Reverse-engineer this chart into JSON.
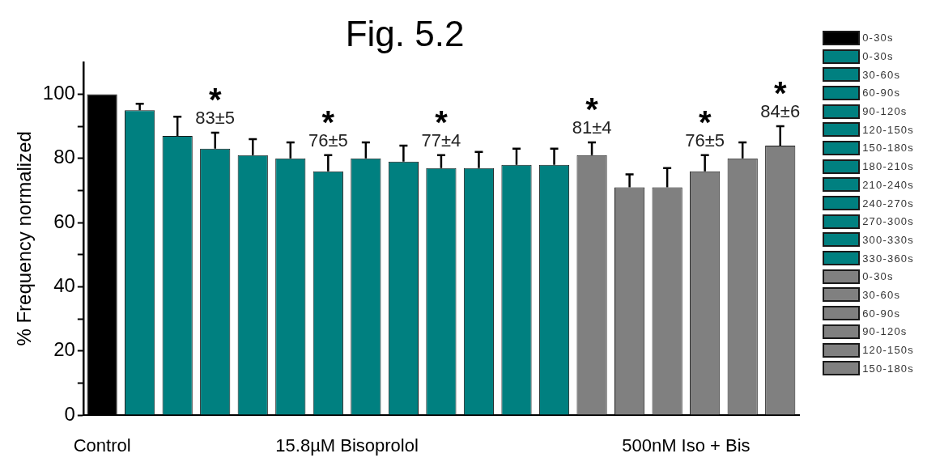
{
  "chart_data": {
    "type": "bar",
    "title": "Fig. 5.2",
    "ylabel": "% Frequency normalized",
    "categories": [
      null,
      null,
      null,
      null,
      null,
      null,
      null,
      null,
      null,
      null,
      null,
      null,
      null,
      null,
      null,
      null,
      null,
      null,
      null
    ],
    "series": [
      {
        "name": "0-30s",
        "color": "#000000",
        "values": [
          100,
          null,
          null,
          null,
          null,
          null,
          null,
          null,
          null,
          null,
          null,
          null,
          null,
          null,
          null,
          null,
          null,
          null,
          null
        ]
      },
      {
        "name": "0-30s",
        "color": "#008080",
        "values": [
          null,
          95,
          null,
          null,
          null,
          null,
          null,
          null,
          null,
          null,
          null,
          null,
          null,
          null,
          null,
          null,
          null,
          null,
          null
        ],
        "errors": [
          null,
          2,
          null,
          null,
          null,
          null,
          null,
          null,
          null,
          null,
          null,
          null,
          null,
          null,
          null,
          null,
          null,
          null,
          null
        ]
      },
      {
        "name": "30-60s",
        "color": "#008080",
        "values": [
          null,
          null,
          87,
          null,
          null,
          null,
          null,
          null,
          null,
          null,
          null,
          null,
          null,
          null,
          null,
          null,
          null,
          null,
          null
        ],
        "errors": [
          null,
          null,
          6,
          null,
          null,
          null,
          null,
          null,
          null,
          null,
          null,
          null,
          null,
          null,
          null,
          null,
          null,
          null,
          null
        ]
      },
      {
        "name": "60-90s",
        "color": "#008080",
        "values": [
          null,
          null,
          null,
          83,
          null,
          null,
          null,
          null,
          null,
          null,
          null,
          null,
          null,
          null,
          null,
          null,
          null,
          null,
          null
        ],
        "errors": [
          null,
          null,
          null,
          5,
          null,
          null,
          null,
          null,
          null,
          null,
          null,
          null,
          null,
          null,
          null,
          null,
          null,
          null,
          null
        ],
        "value_labels": [
          null,
          null,
          null,
          "83±5",
          null,
          null,
          null,
          null,
          null,
          null,
          null,
          null,
          null,
          null,
          null,
          null,
          null,
          null,
          null
        ]
      },
      {
        "name": "90-120s",
        "color": "#008080",
        "values": [
          null,
          null,
          null,
          null,
          81,
          null,
          null,
          null,
          null,
          null,
          null,
          null,
          null,
          null,
          null,
          null,
          null,
          null,
          null
        ],
        "errors": [
          null,
          null,
          null,
          null,
          5,
          null,
          null,
          null,
          null,
          null,
          null,
          null,
          null,
          null,
          null,
          null,
          null,
          null,
          null
        ]
      },
      {
        "name": "120-150s",
        "color": "#008080",
        "values": [
          null,
          null,
          null,
          null,
          null,
          80,
          null,
          null,
          null,
          null,
          null,
          null,
          null,
          null,
          null,
          null,
          null,
          null,
          null
        ],
        "errors": [
          null,
          null,
          null,
          null,
          null,
          5,
          null,
          null,
          null,
          null,
          null,
          null,
          null,
          null,
          null,
          null,
          null,
          null,
          null
        ]
      },
      {
        "name": "150-180s",
        "color": "#008080",
        "values": [
          null,
          null,
          null,
          null,
          null,
          null,
          76,
          null,
          null,
          null,
          null,
          null,
          null,
          null,
          null,
          null,
          null,
          null,
          null
        ],
        "errors": [
          null,
          null,
          null,
          null,
          null,
          null,
          5,
          null,
          null,
          null,
          null,
          null,
          null,
          null,
          null,
          null,
          null,
          null,
          null
        ],
        "value_labels": [
          null,
          null,
          null,
          null,
          null,
          null,
          "76±5",
          null,
          null,
          null,
          null,
          null,
          null,
          null,
          null,
          null,
          null,
          null,
          null
        ]
      },
      {
        "name": "180-210s",
        "color": "#008080",
        "values": [
          null,
          null,
          null,
          null,
          null,
          null,
          null,
          80,
          null,
          null,
          null,
          null,
          null,
          null,
          null,
          null,
          null,
          null,
          null
        ],
        "errors": [
          null,
          null,
          null,
          null,
          null,
          null,
          null,
          5,
          null,
          null,
          null,
          null,
          null,
          null,
          null,
          null,
          null,
          null,
          null
        ]
      },
      {
        "name": "210-240s",
        "color": "#008080",
        "values": [
          null,
          null,
          null,
          null,
          null,
          null,
          null,
          null,
          79,
          null,
          null,
          null,
          null,
          null,
          null,
          null,
          null,
          null,
          null
        ],
        "errors": [
          null,
          null,
          null,
          null,
          null,
          null,
          null,
          null,
          5,
          null,
          null,
          null,
          null,
          null,
          null,
          null,
          null,
          null,
          null
        ]
      },
      {
        "name": "240-270s",
        "color": "#008080",
        "values": [
          null,
          null,
          null,
          null,
          null,
          null,
          null,
          null,
          null,
          77,
          null,
          null,
          null,
          null,
          null,
          null,
          null,
          null,
          null
        ],
        "errors": [
          null,
          null,
          null,
          null,
          null,
          null,
          null,
          null,
          null,
          4,
          null,
          null,
          null,
          null,
          null,
          null,
          null,
          null,
          null
        ],
        "value_labels": [
          null,
          null,
          null,
          null,
          null,
          null,
          null,
          null,
          null,
          "77±4",
          null,
          null,
          null,
          null,
          null,
          null,
          null,
          null,
          null
        ]
      },
      {
        "name": "270-300s",
        "color": "#008080",
        "values": [
          null,
          null,
          null,
          null,
          null,
          null,
          null,
          null,
          null,
          null,
          77,
          null,
          null,
          null,
          null,
          null,
          null,
          null,
          null
        ],
        "errors": [
          null,
          null,
          null,
          null,
          null,
          null,
          null,
          null,
          null,
          null,
          5,
          null,
          null,
          null,
          null,
          null,
          null,
          null,
          null
        ]
      },
      {
        "name": "300-330s",
        "color": "#008080",
        "values": [
          null,
          null,
          null,
          null,
          null,
          null,
          null,
          null,
          null,
          null,
          null,
          78,
          null,
          null,
          null,
          null,
          null,
          null,
          null
        ],
        "errors": [
          null,
          null,
          null,
          null,
          null,
          null,
          null,
          null,
          null,
          null,
          null,
          5,
          null,
          null,
          null,
          null,
          null,
          null,
          null
        ]
      },
      {
        "name": "330-360s",
        "color": "#008080",
        "values": [
          null,
          null,
          null,
          null,
          null,
          null,
          null,
          null,
          null,
          null,
          null,
          null,
          78,
          null,
          null,
          null,
          null,
          null,
          null
        ],
        "errors": [
          null,
          null,
          null,
          null,
          null,
          null,
          null,
          null,
          null,
          null,
          null,
          null,
          5,
          null,
          null,
          null,
          null,
          null,
          null
        ]
      },
      {
        "name": "0-30s",
        "color": "#808080",
        "values": [
          null,
          null,
          null,
          null,
          null,
          null,
          null,
          null,
          null,
          null,
          null,
          null,
          null,
          81,
          null,
          null,
          null,
          null,
          null
        ],
        "errors": [
          null,
          null,
          null,
          null,
          null,
          null,
          null,
          null,
          null,
          null,
          null,
          null,
          null,
          4,
          null,
          null,
          null,
          null,
          null
        ],
        "value_labels": [
          null,
          null,
          null,
          null,
          null,
          null,
          null,
          null,
          null,
          null,
          null,
          null,
          null,
          "81±4",
          null,
          null,
          null,
          null,
          null
        ]
      },
      {
        "name": "30-60s",
        "color": "#808080",
        "values": [
          null,
          null,
          null,
          null,
          null,
          null,
          null,
          null,
          null,
          null,
          null,
          null,
          null,
          null,
          71,
          null,
          null,
          null,
          null
        ],
        "errors": [
          null,
          null,
          null,
          null,
          null,
          null,
          null,
          null,
          null,
          null,
          null,
          null,
          null,
          null,
          4,
          null,
          null,
          null,
          null
        ]
      },
      {
        "name": "60-90s",
        "color": "#808080",
        "values": [
          null,
          null,
          null,
          null,
          null,
          null,
          null,
          null,
          null,
          null,
          null,
          null,
          null,
          null,
          null,
          71,
          null,
          null,
          null
        ],
        "errors": [
          null,
          null,
          null,
          null,
          null,
          null,
          null,
          null,
          null,
          null,
          null,
          null,
          null,
          null,
          null,
          6,
          null,
          null,
          null
        ]
      },
      {
        "name": "90-120s",
        "color": "#808080",
        "values": [
          null,
          null,
          null,
          null,
          null,
          null,
          null,
          null,
          null,
          null,
          null,
          null,
          null,
          null,
          null,
          null,
          76,
          null,
          null
        ],
        "errors": [
          null,
          null,
          null,
          null,
          null,
          null,
          null,
          null,
          null,
          null,
          null,
          null,
          null,
          null,
          null,
          null,
          5,
          null,
          null
        ],
        "value_labels": [
          null,
          null,
          null,
          null,
          null,
          null,
          null,
          null,
          null,
          null,
          null,
          null,
          null,
          null,
          null,
          null,
          "76±5",
          null,
          null
        ]
      },
      {
        "name": "120-150s",
        "color": "#808080",
        "values": [
          null,
          null,
          null,
          null,
          null,
          null,
          null,
          null,
          null,
          null,
          null,
          null,
          null,
          null,
          null,
          null,
          null,
          80,
          null
        ],
        "errors": [
          null,
          null,
          null,
          null,
          null,
          null,
          null,
          null,
          null,
          null,
          null,
          null,
          null,
          null,
          null,
          null,
          null,
          5,
          null
        ]
      },
      {
        "name": "150-180s",
        "color": "#808080",
        "values": [
          null,
          null,
          null,
          null,
          null,
          null,
          null,
          null,
          null,
          null,
          null,
          null,
          null,
          null,
          null,
          null,
          null,
          null,
          84
        ],
        "errors": [
          null,
          null,
          null,
          null,
          null,
          null,
          null,
          null,
          null,
          null,
          null,
          null,
          null,
          null,
          null,
          null,
          null,
          null,
          6
        ],
        "value_labels": [
          null,
          null,
          null,
          null,
          null,
          null,
          null,
          null,
          null,
          null,
          null,
          null,
          null,
          null,
          null,
          null,
          null,
          null,
          "84±6"
        ]
      }
    ],
    "ylim": [
      0,
      110
    ],
    "yticks": [
      0,
      {
        "value": 10,
        "label": null
      },
      20,
      {
        "value": 30,
        "label": null
      },
      40,
      {
        "value": 50,
        "label": null
      },
      60,
      {
        "value": 70,
        "label": null
      },
      80,
      {
        "value": 90,
        "label": null
      },
      100
    ],
    "grid": false,
    "legend": "right",
    "annotations": [
      "Control",
      "15.8µM Bisoprolol",
      "500nM Iso + Bis",
      "*",
      "*",
      "*",
      "*",
      "*",
      "*"
    ]
  }
}
